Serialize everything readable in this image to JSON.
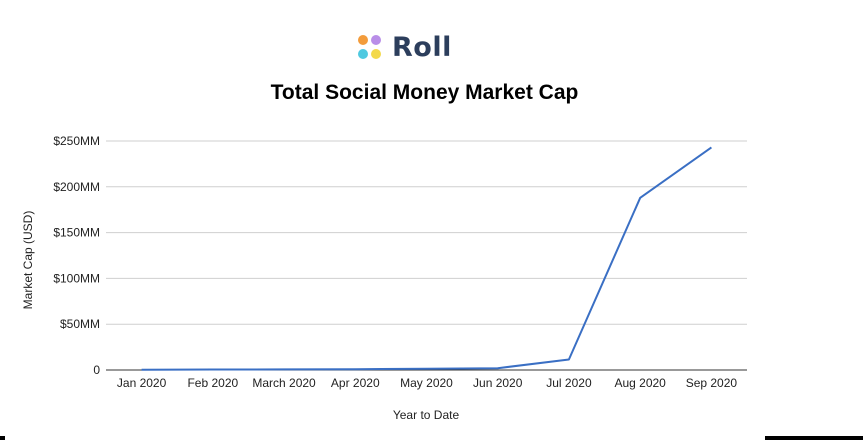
{
  "logo": {
    "text": "Roll",
    "dot_colors": [
      "#f39c3b",
      "#b98ee8",
      "#4fc9e0",
      "#f3d94b"
    ]
  },
  "chart_data": {
    "type": "line",
    "title": "Total Social Money Market Cap",
    "xlabel": "Year to Date",
    "ylabel": "Market Cap (USD)",
    "categories": [
      "Jan 2020",
      "Feb 2020",
      "March 2020",
      "Apr 2020",
      "May 2020",
      "Jun 2020",
      "Jul 2020",
      "Aug 2020",
      "Sep 2020"
    ],
    "series": [
      {
        "values": [
          0.3,
          0.5,
          0.7,
          0.9,
          1.3,
          2.0,
          11.5,
          188,
          243
        ],
        "color": "#3a6fc4"
      }
    ],
    "ylim": [
      0,
      250
    ],
    "yticks": [
      0,
      50,
      100,
      150,
      200,
      250
    ],
    "ytick_labels": [
      "0",
      "$50MM",
      "$100MM",
      "$150MM",
      "$200MM",
      "$250MM"
    ],
    "grid": true,
    "legend": "none"
  }
}
